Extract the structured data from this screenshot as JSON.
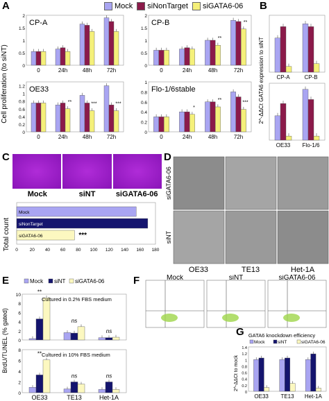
{
  "panels": {
    "A": "A",
    "B": "B",
    "C": "C",
    "D": "D",
    "E": "E",
    "F": "F",
    "G": "G"
  },
  "legend_top": {
    "mock": "Mock",
    "sint": "siNonTarget",
    "sigata": "siGATA6-06"
  },
  "colors": {
    "mock": "#a9a5f2",
    "sint": "#8b1a4a",
    "sigata": "#f5f07a",
    "navy": "#14146e",
    "cream": "#fcf8c0"
  },
  "panelA": {
    "ylabel": "Cell proliferation (to siNT)",
    "categories": [
      "0",
      "24h",
      "48h",
      "72h"
    ],
    "subplots": [
      {
        "label": "CP-A",
        "ylim": [
          0,
          2.0
        ],
        "ticks": [
          "0",
          "0.5",
          "1",
          "1.5",
          "2"
        ],
        "series": {
          "mock": [
            0.55,
            0.65,
            1.65,
            1.9
          ],
          "sint": [
            0.55,
            0.7,
            1.6,
            1.75
          ],
          "sigata": [
            0.55,
            0.55,
            1.35,
            1.35
          ]
        },
        "stars": []
      },
      {
        "label": "CP-B",
        "ylim": [
          0,
          2.0
        ],
        "ticks": [
          "0",
          "0.5",
          "1",
          "1.5",
          "2"
        ],
        "series": {
          "mock": [
            0.6,
            0.65,
            1.0,
            1.8
          ],
          "sint": [
            0.6,
            0.7,
            1.0,
            1.75
          ],
          "sigata": [
            0.6,
            0.65,
            0.8,
            1.45
          ]
        },
        "stars": [
          "",
          "",
          "**",
          "**"
        ]
      },
      {
        "label": "OE33",
        "ylim": [
          0,
          1.3
        ],
        "ticks": [
          "0",
          "0.2",
          "0.4",
          "0.6",
          "0.8",
          "1",
          "1.2"
        ],
        "series": {
          "mock": [
            0.75,
            0.7,
            0.95,
            1.2
          ],
          "sint": [
            0.75,
            0.75,
            0.75,
            0.7
          ],
          "sigata": [
            0.75,
            0.6,
            0.55,
            0.55
          ]
        },
        "stars": [
          "",
          "**",
          "***",
          "***"
        ]
      },
      {
        "label": "Flo-1/6stable",
        "ylim": [
          0,
          1.0
        ],
        "ticks": [
          "0",
          "0.2",
          "0.4",
          "0.6",
          "0.8",
          "1"
        ],
        "series": {
          "mock": [
            0.3,
            0.4,
            0.6,
            0.8
          ],
          "sint": [
            0.3,
            0.4,
            0.6,
            0.7
          ],
          "sigata": [
            0.3,
            0.35,
            0.5,
            0.45
          ]
        },
        "stars": [
          "",
          "*",
          "**",
          "***"
        ]
      }
    ]
  },
  "panelB": {
    "ylabel": "2^-ΔΔCt GATA6 expression to siNT",
    "top": {
      "categories": [
        "CP-A",
        "CP-B"
      ],
      "series": {
        "mock": [
          0.6,
          0.85
        ],
        "sint": [
          0.8,
          0.8
        ],
        "sigata": [
          0.1,
          0.15
        ]
      }
    },
    "bottom": {
      "categories": [
        "OE33",
        "Flo-1/6"
      ],
      "series": {
        "mock": [
          0.6,
          1.25
        ],
        "sint": [
          0.9,
          1.0
        ],
        "sigata": [
          0.1,
          0.1
        ]
      }
    }
  },
  "panelC": {
    "labels": [
      "Mock",
      "siNT",
      "siGATA6-06"
    ],
    "ylabel": "Total count",
    "bars": [
      {
        "name": "Mock",
        "value": 155
      },
      {
        "name": "siNonTarget",
        "value": 170
      },
      {
        "name": "siGATA6-06",
        "value": 75
      }
    ],
    "xticks": [
      "0",
      "20",
      "40",
      "60",
      "80",
      "100",
      "120",
      "140",
      "160",
      "180"
    ],
    "stars": "***"
  },
  "panelD": {
    "rows": [
      "siGATA6-06",
      "siNT"
    ],
    "cols": [
      "OE33",
      "TE13",
      "Het-1A"
    ]
  },
  "panelE": {
    "ylabel": "BrdU/TUNEL (% gated)",
    "legend": [
      "Mock",
      "siNT",
      "siGATA6-06"
    ],
    "top": {
      "note": "Cultured in 0.2% FBS medium",
      "ylim": [
        0,
        10
      ],
      "ticks": [
        "0",
        "2",
        "4",
        "6",
        "8",
        "10"
      ],
      "categories": [
        "OE33",
        "TE13",
        "Het-1A"
      ],
      "series": {
        "mock": [
          0.3,
          1.6,
          0.5
        ],
        "sint": [
          4.6,
          1.5,
          0.5
        ],
        "sigata": [
          9.2,
          2.9,
          0.6
        ]
      },
      "annot": [
        "**",
        "ns",
        "ns"
      ]
    },
    "bottom": {
      "note": "Cultured in 10% FBS medium",
      "ylim": [
        0,
        8
      ],
      "ticks": [
        "0",
        "2",
        "4",
        "6",
        "8"
      ],
      "categories": [
        "OE33",
        "TE13",
        "Het-1A"
      ],
      "series": {
        "mock": [
          1.0,
          0.7,
          0.6
        ],
        "sint": [
          3.3,
          2.0,
          2.0
        ],
        "sigata": [
          6.1,
          1.6,
          0.6
        ]
      },
      "annot": [
        "**",
        "ns",
        "ns"
      ]
    }
  },
  "panelF": {
    "labels": [
      "Mock",
      "siNT",
      "siGATA6-06"
    ]
  },
  "panelG": {
    "title": "GATA6 knockdown efficiency",
    "legend": [
      "Mock",
      "siNT",
      "siGATA6-06"
    ],
    "ylabel": "2^-ΔΔCt to mock",
    "ylim": [
      0,
      1.4
    ],
    "ticks": [
      "0",
      "0.2",
      "0.4",
      "0.6",
      "0.8",
      "1",
      "1.2",
      "1.4"
    ],
    "categories": [
      "OE33",
      "TE13",
      "Het-1A"
    ],
    "series": {
      "mock": [
        1.0,
        1.0,
        1.0
      ],
      "sint": [
        1.05,
        1.05,
        1.18
      ],
      "sigata": [
        0.12,
        0.25,
        0.1
      ]
    }
  }
}
